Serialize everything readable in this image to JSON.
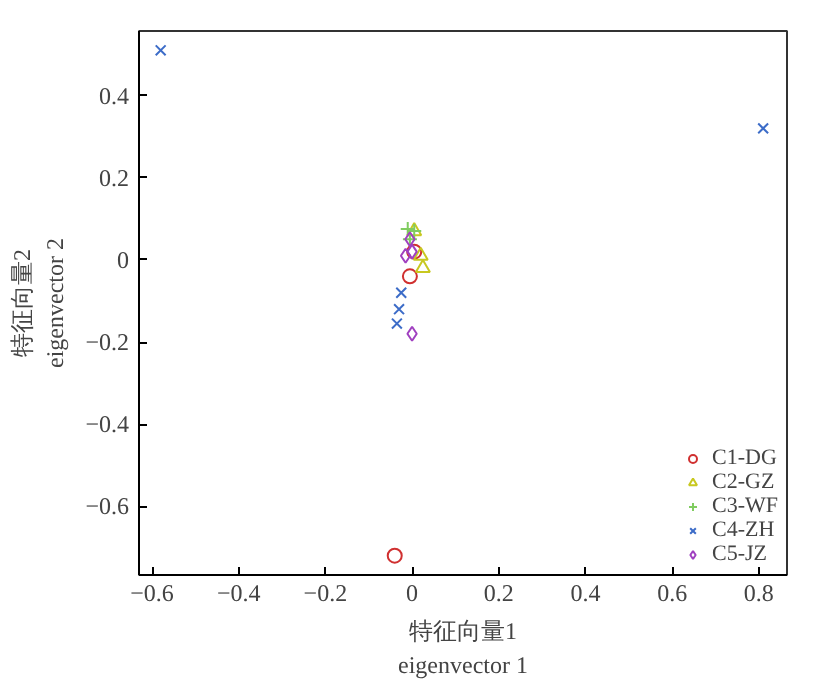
{
  "chart_data": {
    "type": "scatter",
    "xlabel": "特征向量1\neigenvector 1",
    "ylabel": "特征向量2\neigenvector 2",
    "xlim": [
      -0.63,
      0.865
    ],
    "ylim": [
      -0.767,
      0.557
    ],
    "xticks": [
      {
        "value": -0.6,
        "label": "−0.6"
      },
      {
        "value": -0.4,
        "label": "−0.4"
      },
      {
        "value": -0.2,
        "label": "−0.2"
      },
      0,
      0.2,
      0.4,
      0.6,
      0.8
    ],
    "yticks": [
      {
        "value": -0.6,
        "label": "−0.6"
      },
      {
        "value": -0.4,
        "label": "−0.4"
      },
      {
        "value": -0.2,
        "label": "−0.2"
      },
      0,
      0.2,
      0.4
    ],
    "grid": false,
    "legend": "bottom right",
    "series": [
      {
        "name": "C1-DG",
        "color": "#d03030",
        "marker": "circle",
        "x": [
          -0.04,
          -0.005,
          0.005
        ],
        "values": [
          -0.72,
          -0.04,
          0.02
        ]
      },
      {
        "name": "C2-GZ",
        "color": "#c8c820",
        "marker": "triangle",
        "x": [
          0.005,
          0.02,
          0.025
        ],
        "values": [
          0.07,
          0.01,
          -0.02
        ]
      },
      {
        "name": "C3-WF",
        "color": "#80cc60",
        "marker": "cross",
        "x": [
          -0.01,
          0.005,
          -0.005
        ],
        "values": [
          0.075,
          0.07,
          0.05
        ]
      },
      {
        "name": "C4-ZH",
        "color": "#3c6cc8",
        "marker": "x",
        "x": [
          -0.58,
          0.81,
          -0.025,
          -0.03,
          -0.035
        ],
        "values": [
          0.51,
          0.32,
          -0.08,
          -0.12,
          -0.155
        ]
      },
      {
        "name": "C5-JZ",
        "color": "#a040c0",
        "marker": "diamond",
        "x": [
          0.0,
          -0.015,
          0.0,
          -0.005
        ],
        "values": [
          -0.18,
          0.01,
          0.02,
          0.05
        ]
      }
    ]
  }
}
